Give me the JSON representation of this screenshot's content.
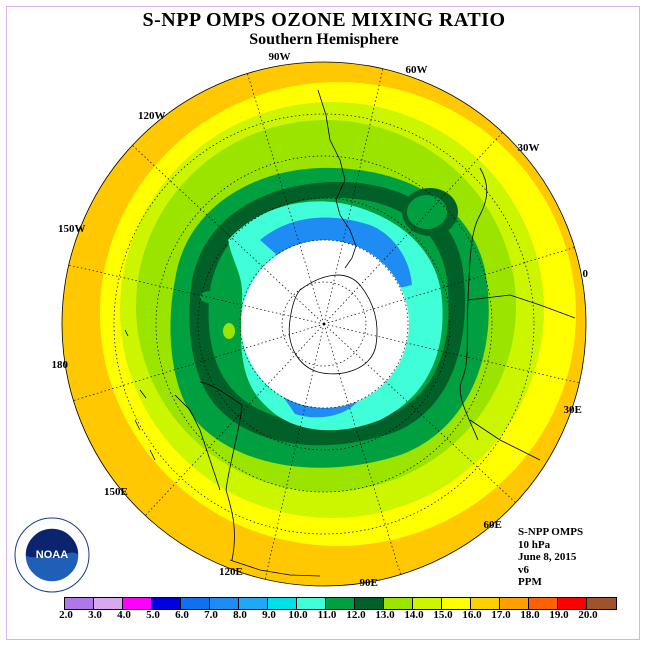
{
  "title": "S-NPP OMPS OZONE MIXING RATIO",
  "subtitle": "Southern Hemisphere",
  "longitude_labels": [
    "90W",
    "60W",
    "30W",
    "0",
    "30E",
    "60E",
    "90E",
    "120E",
    "150E",
    "180",
    "150W",
    "120W"
  ],
  "info": {
    "instrument": "S-NPP OMPS",
    "level": "10 hPa",
    "date": "June 8, 2015",
    "version": "v6",
    "units": "PPM"
  },
  "logo": {
    "text": "NOAA"
  },
  "colorbar": {
    "ticks": [
      "2.0",
      "3.0",
      "4.0",
      "5.0",
      "6.0",
      "7.0",
      "8.0",
      "9.0",
      "10.0",
      "11.0",
      "12.0",
      "13.0",
      "14.0",
      "15.0",
      "16.0",
      "17.0",
      "18.0",
      "19.0",
      "20.0"
    ],
    "colors": [
      "#b077e8",
      "#d8a8f0",
      "#ff00ff",
      "#0000e0",
      "#1070f0",
      "#1f8cf4",
      "#20a8f5",
      "#00e0e8",
      "#40ffd8",
      "#00a040",
      "#006028",
      "#9ae400",
      "#ccf500",
      "#ffff00",
      "#ffd000",
      "#ffa000",
      "#ff6000",
      "#ff0000",
      "#a0522d"
    ]
  },
  "map_colors": {
    "outer": "#ffc800",
    "yellow": "#ffff00",
    "lightgreen": "#ccf500",
    "green": "#9ae400",
    "midgreen": "#00a040",
    "darkgreen": "#006028",
    "cyan": "#40ffd8",
    "blue": "#1f8cf4",
    "nodata": "#ffffff"
  }
}
